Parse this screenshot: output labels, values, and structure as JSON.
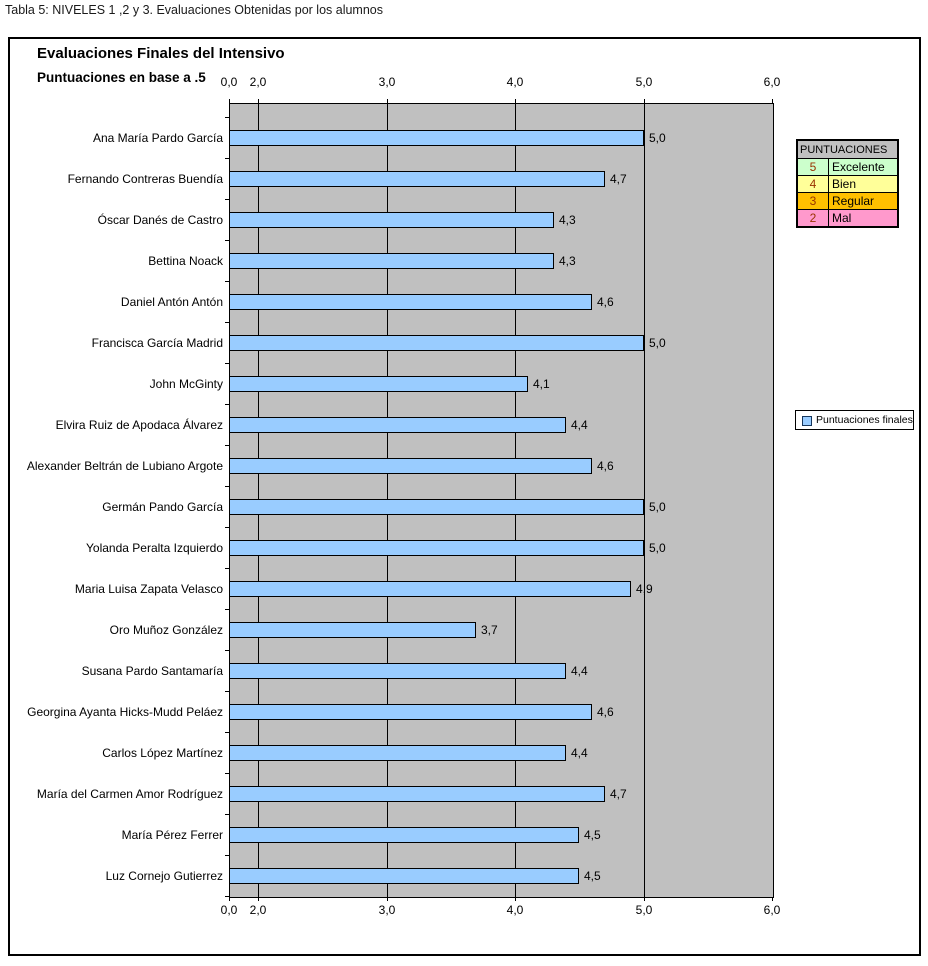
{
  "caption": "Tabla 5: NIVELES 1 ,2 y 3. Evaluaciones Obtenidas por los alumnos",
  "chart": {
    "title": "Evaluaciones Finales del Intensivo",
    "subtitle": "Puntuaciones en base a .5"
  },
  "chart_data": {
    "type": "bar",
    "orientation": "horizontal",
    "title": "Evaluaciones Finales del Intensivo",
    "subtitle": "Puntuaciones en base a .5",
    "series": [
      {
        "name": "Puntuaciones finales",
        "values": [
          5.0,
          4.7,
          4.3,
          4.3,
          4.6,
          5.0,
          4.1,
          4.4,
          4.6,
          5.0,
          5.0,
          4.9,
          3.7,
          4.4,
          4.6,
          4.4,
          4.7,
          4.5,
          4.5
        ]
      }
    ],
    "value_labels": [
      "5,0",
      "4,7",
      "4,3",
      "4,3",
      "4,6",
      "5,0",
      "4,1",
      "4,4",
      "4,6",
      "5,0",
      "5,0",
      "4,9",
      "3,7",
      "4,4",
      "4,6",
      "4,4",
      "4,7",
      "4,5",
      "4,5"
    ],
    "categories": [
      "Ana María Pardo García",
      "Fernando Contreras Buendía",
      "Óscar Danés de Castro",
      "Bettina Noack",
      "Daniel Antón Antón",
      "Francisca García Madrid",
      "John McGinty",
      "Elvira Ruiz de Apodaca Álvarez",
      "Alexander Beltrán de Lubiano Argote",
      "Germán Pando García",
      "Yolanda Peralta Izquierdo",
      "Maria Luisa Zapata Velasco",
      "Oro Muñoz González",
      "Susana Pardo Santamaría",
      "Georgina Ayanta Hicks-Mudd Peláez",
      "Carlos López Martínez",
      "María del Carmen Amor Rodríguez",
      "María Pérez Ferrer",
      "Luz Cornejo Gutierrez"
    ],
    "axis_tick_labels": [
      "0,0",
      "2,0",
      "3,0",
      "4,0",
      "5,0",
      "6,0"
    ],
    "axis_tick_values": [
      0,
      2,
      3,
      4,
      5,
      6
    ],
    "xlim": [
      0,
      6
    ],
    "axis_label_position": "top-and-bottom",
    "grid": true,
    "bar_color": "#99CCFF",
    "bar_border_color": "#000000",
    "plot_bg": "#C0C0C0",
    "legend_position": "right"
  },
  "legend": {
    "label": "Puntuaciones finales",
    "marker_color": "#99CCFF"
  },
  "score_key": {
    "header": "PUNTUACIONES",
    "rows": [
      {
        "score": "5",
        "label": "Excelente",
        "color": "#CCFFCC"
      },
      {
        "score": "4",
        "label": "Bien",
        "color": "#FFFF99"
      },
      {
        "score": "3",
        "label": "Regular",
        "color": "#FFC000"
      },
      {
        "score": "2",
        "label": "Mal",
        "color": "#FF99CC"
      }
    ]
  }
}
